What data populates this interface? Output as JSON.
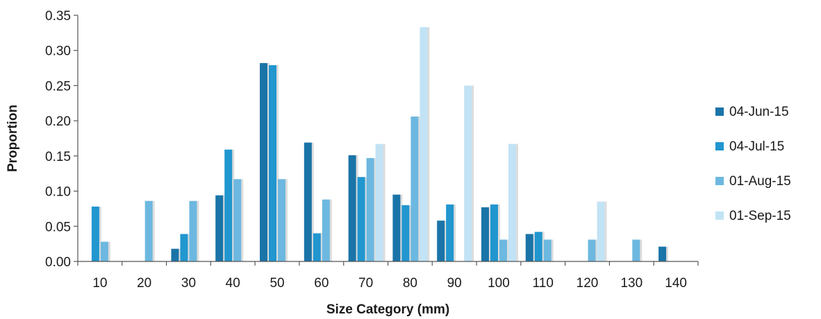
{
  "chart_data": {
    "type": "bar",
    "xlabel": "Size Category (mm)",
    "ylabel": "Proportion",
    "ylim": [
      0,
      0.35
    ],
    "y_ticks": [
      "0.00",
      "0.05",
      "0.10",
      "0.15",
      "0.20",
      "0.25",
      "0.30",
      "0.35"
    ],
    "grid": false,
    "legend_position": "right",
    "categories": [
      "10",
      "20",
      "30",
      "40",
      "50",
      "60",
      "70",
      "80",
      "90",
      "100",
      "110",
      "120",
      "130",
      "140"
    ],
    "series": [
      {
        "name": "04-Jun-15",
        "color": "#1a74a8",
        "values": [
          0,
          0,
          0.018,
          0.094,
          0.282,
          0.169,
          0.151,
          0.095,
          0.058,
          0.077,
          0.039,
          0,
          0,
          0.021
        ]
      },
      {
        "name": "04-Jul-15",
        "color": "#2196cf",
        "values": [
          0.078,
          0,
          0.039,
          0.159,
          0.279,
          0.04,
          0.12,
          0.08,
          0.081,
          0.081,
          0.042,
          0,
          0,
          0
        ]
      },
      {
        "name": "01-Aug-15",
        "color": "#6db8e0",
        "values": [
          0.028,
          0.086,
          0.086,
          0.117,
          0.117,
          0.088,
          0.147,
          0.206,
          0,
          0.031,
          0.031,
          0.031,
          0.031,
          0
        ]
      },
      {
        "name": "01-Sep-15",
        "color": "#c2e3f5",
        "values": [
          0,
          0,
          0,
          0,
          0,
          0,
          0.167,
          0.333,
          0.25,
          0.167,
          0,
          0.085,
          0,
          0
        ]
      }
    ]
  }
}
